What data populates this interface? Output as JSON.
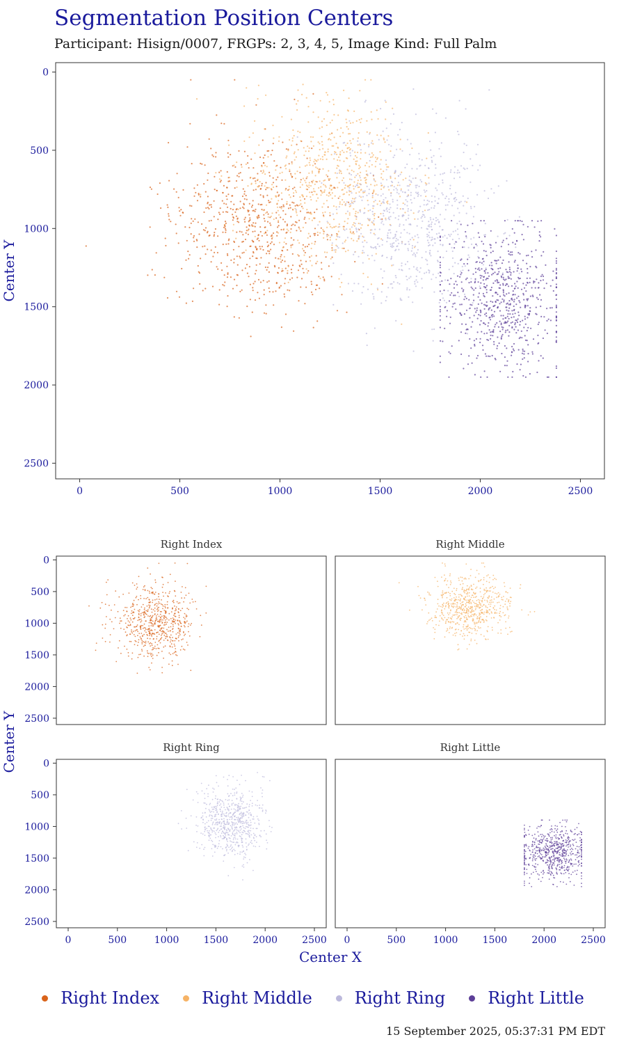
{
  "title": "Segmentation Position Centers",
  "subtitle": "Participant: Hisign/0007, FRGPs: 2, 3, 4, 5, Image Kind: Full Palm",
  "timestamp": "15 September 2025, 05:37:31 PM EDT",
  "axis_labels": {
    "x": "Center X",
    "y": "Center Y"
  },
  "legend": [
    {
      "label": "Right Index",
      "color": "#d9631a"
    },
    {
      "label": "Right Middle",
      "color": "#f6b366"
    },
    {
      "label": "Right Ring",
      "color": "#bcb9dc"
    },
    {
      "label": "Right Little",
      "color": "#5d3f98"
    }
  ],
  "chart_data": [
    {
      "type": "scatter",
      "title": "",
      "xlabel": "Center X",
      "ylabel": "Center Y",
      "xlim": [
        -120,
        2620
      ],
      "ylim": [
        2600,
        -60
      ],
      "y_reversed": true,
      "xticks": [
        0,
        500,
        1000,
        1500,
        2000,
        2500
      ],
      "yticks": [
        0,
        500,
        1000,
        1500,
        2000,
        2500
      ],
      "grid": false,
      "series": [
        {
          "name": "Right Index",
          "color": "#d9631a",
          "center": [
            880,
            980
          ],
          "spread": [
            210,
            280
          ],
          "n": 700
        },
        {
          "name": "Right Middle",
          "color": "#f6b366",
          "center": [
            1260,
            720
          ],
          "spread": [
            210,
            260
          ],
          "n": 700
        },
        {
          "name": "Right Ring",
          "color": "#bcb9dc",
          "center": [
            1650,
            950
          ],
          "spread": [
            190,
            290
          ],
          "n": 700
        },
        {
          "name": "Right Little",
          "color": "#5d3f98",
          "center": [
            2110,
            1450
          ],
          "spread": [
            170,
            230
          ],
          "n": 700,
          "x_range": [
            1800,
            2380
          ],
          "y_range": [
            950,
            1950
          ]
        }
      ]
    },
    {
      "type": "scatter",
      "facet_label": "Right Index",
      "series": [
        {
          "name": "Right Index",
          "color": "#d9631a",
          "center": [
            880,
            980
          ],
          "spread": [
            200,
            270
          ],
          "n": 650
        }
      ]
    },
    {
      "type": "scatter",
      "facet_label": "Right Middle",
      "series": [
        {
          "name": "Right Middle",
          "color": "#f6b366",
          "center": [
            1250,
            730
          ],
          "spread": [
            200,
            250
          ],
          "n": 650
        }
      ]
    },
    {
      "type": "scatter",
      "facet_label": "Right Ring",
      "series": [
        {
          "name": "Right Ring",
          "color": "#bcb9dc",
          "center": [
            1650,
            950
          ],
          "spread": [
            170,
            270
          ],
          "n": 650
        }
      ]
    },
    {
      "type": "scatter",
      "facet_label": "Right Little",
      "series": [
        {
          "name": "Right Little",
          "color": "#5d3f98",
          "center": [
            2100,
            1420
          ],
          "spread": [
            170,
            220
          ],
          "n": 650,
          "x_range": [
            1800,
            2380
          ],
          "y_range": [
            900,
            1950
          ]
        }
      ]
    }
  ]
}
